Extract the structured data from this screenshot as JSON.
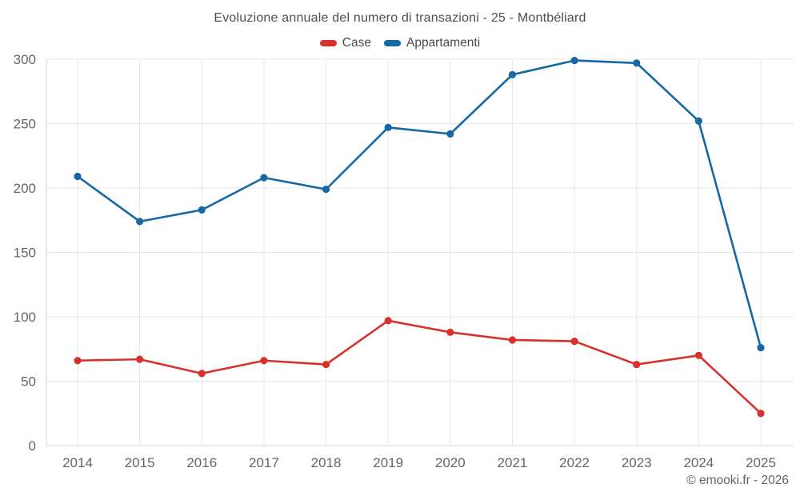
{
  "title": "Evoluzione annuale del numero di transazioni - 25 - Montbéliard",
  "footer": "© emooki.fr - 2026",
  "colors": {
    "case_red": "#d7312e",
    "appartamenti_blue": "#1568a3",
    "grid": "#e7e7e7",
    "axis": "#d6d6d6",
    "tick_label": "#666666",
    "title_text": "#4e4e4e",
    "footer_text": "#5f6368"
  },
  "chart_data": {
    "type": "line",
    "title": "Evoluzione annuale del numero di transazioni - 25 - Montbéliard",
    "x": [
      2014,
      2015,
      2016,
      2017,
      2018,
      2019,
      2020,
      2021,
      2022,
      2023,
      2024,
      2025
    ],
    "series": [
      {
        "name": "Case",
        "color": "#d7312e",
        "values": [
          66,
          67,
          56,
          66,
          63,
          97,
          88,
          82,
          81,
          63,
          70,
          25
        ]
      },
      {
        "name": "Appartamenti",
        "color": "#1568a3",
        "values": [
          209,
          174,
          183,
          208,
          199,
          247,
          242,
          288,
          299,
          297,
          252,
          76
        ]
      }
    ],
    "ylim": [
      0,
      300
    ],
    "yticks": [
      0,
      50,
      100,
      150,
      200,
      250,
      300
    ],
    "grid": true,
    "legend_position": "top",
    "marker": "circle"
  }
}
